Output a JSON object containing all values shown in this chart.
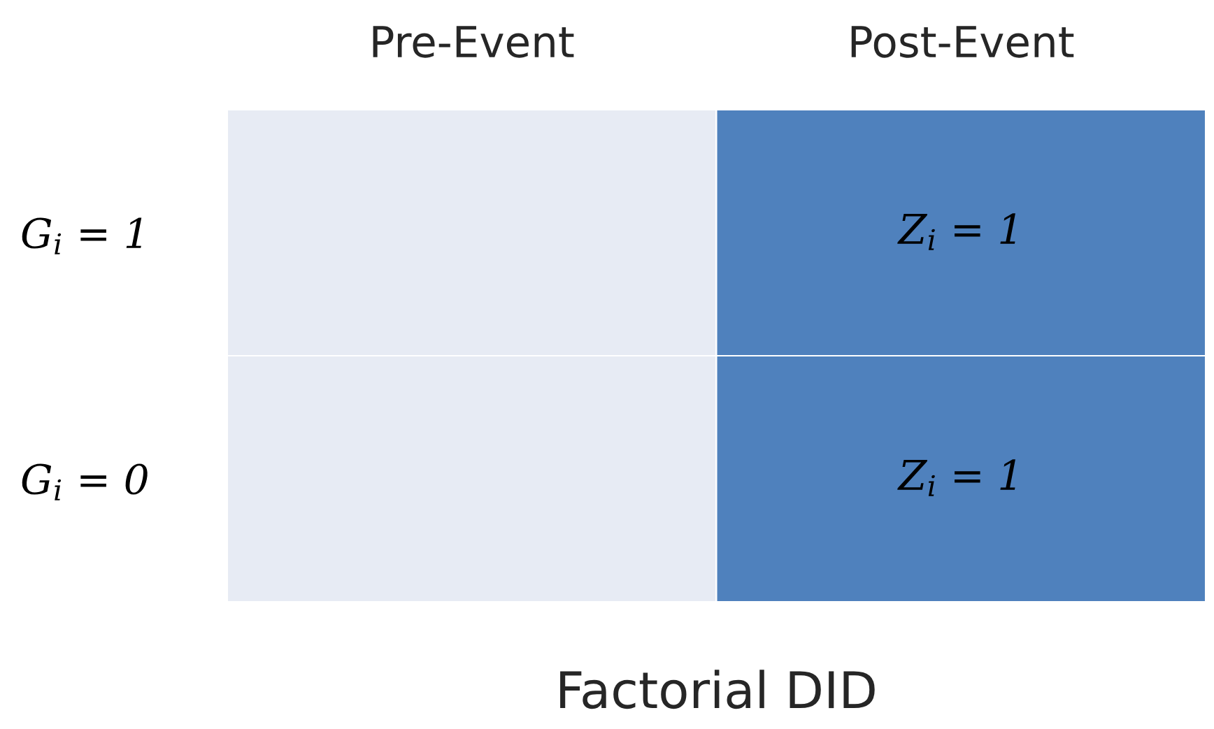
{
  "chart_data": {
    "type": "heatmap",
    "title": "Factorial DID",
    "categories": [
      "Pre-Event",
      "Post-Event"
    ],
    "y_categories": [
      "G$_{i}$ = 1",
      "G$_{i}$ = 0"
    ],
    "cells": [
      [
        null,
        1
      ],
      [
        null,
        1
      ]
    ],
    "cell_labels": [
      [
        null,
        "Z$_{i}$ = 1"
      ],
      [
        null,
        "Z$_{i}$ = 1"
      ]
    ],
    "colors": [
      "#e7ebf4",
      "#4f81bd"
    ]
  }
}
